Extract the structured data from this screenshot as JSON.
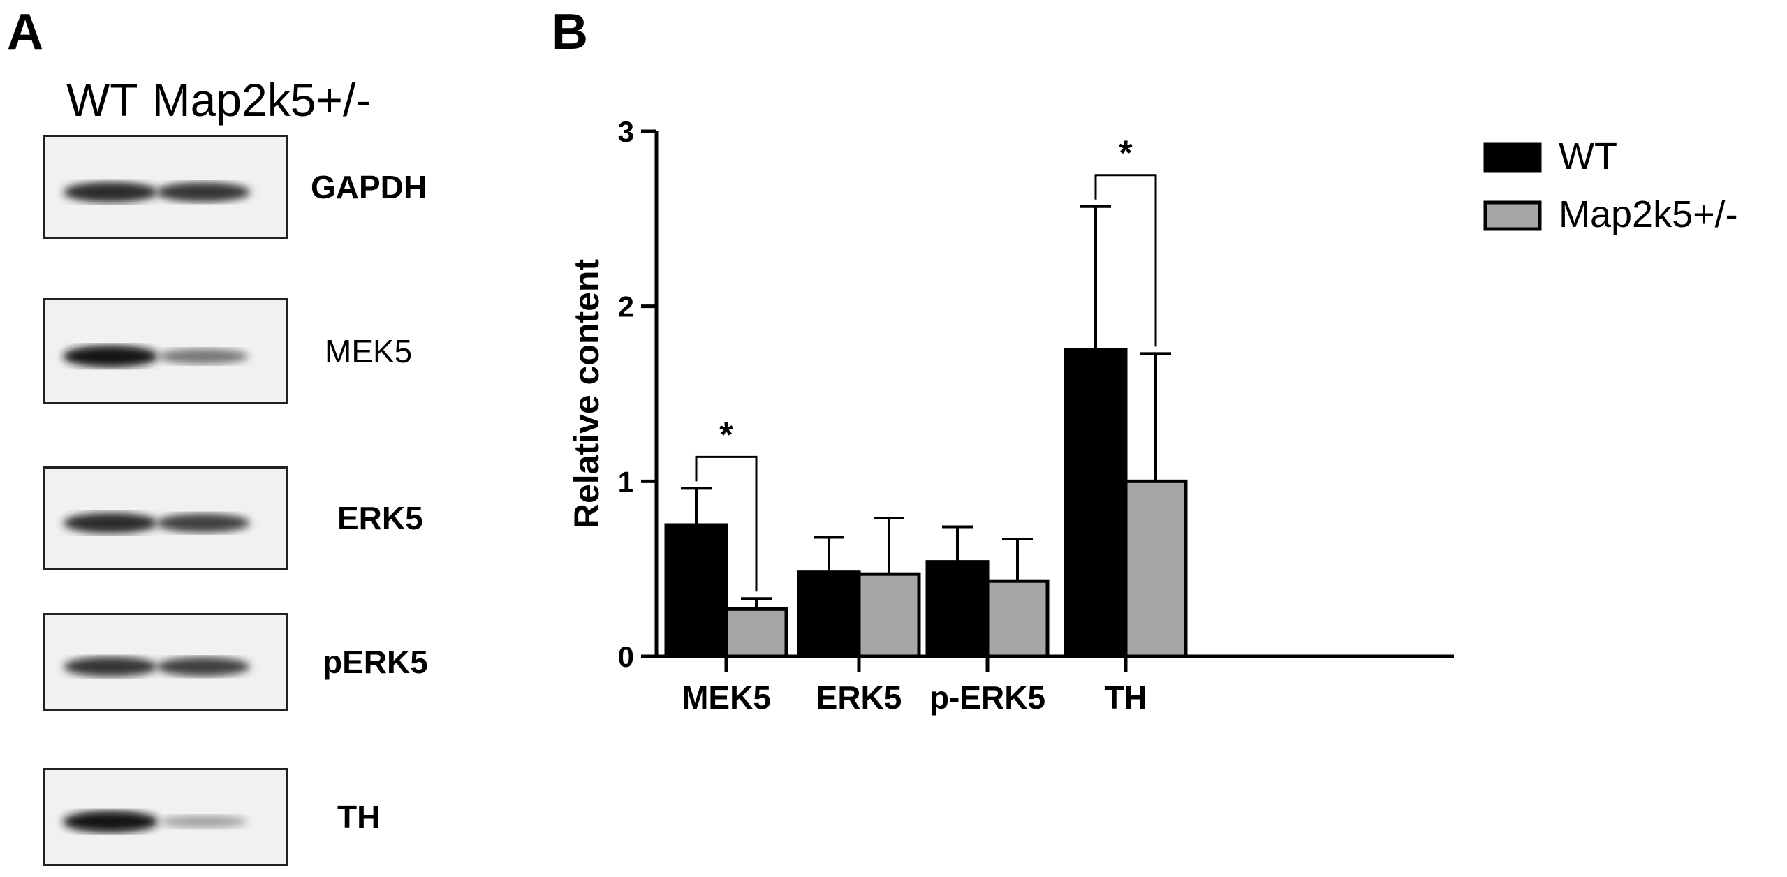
{
  "panels": {
    "a": "A",
    "b": "B"
  },
  "blot": {
    "lanes": [
      "WT",
      "Map2k5+/-"
    ],
    "rows": [
      {
        "label": "GAPDH",
        "intensity": [
          0.85,
          0.8
        ]
      },
      {
        "label": "MEK5",
        "intensity": [
          0.95,
          0.5
        ]
      },
      {
        "label": "ERK5",
        "intensity": [
          0.85,
          0.75
        ]
      },
      {
        "label": "pERK5",
        "intensity": [
          0.8,
          0.75
        ]
      },
      {
        "label": "TH",
        "intensity": [
          0.95,
          0.3
        ]
      }
    ]
  },
  "chart_data": {
    "type": "bar",
    "categories": [
      "MEK5",
      "ERK5",
      "p-ERK5",
      "TH"
    ],
    "series": [
      {
        "name": "WT",
        "values": [
          0.75,
          0.48,
          0.54,
          1.75
        ],
        "errors": [
          0.21,
          0.2,
          0.2,
          0.82
        ],
        "color": "#000000"
      },
      {
        "name": "Map2k5+/-",
        "values": [
          0.27,
          0.47,
          0.43,
          1.0
        ],
        "errors": [
          0.06,
          0.32,
          0.24,
          0.73
        ],
        "color": "#a6a6a6"
      }
    ],
    "ylabel": "Relative content",
    "ylim": [
      0,
      3
    ],
    "yticks": [
      0,
      1,
      2,
      3
    ],
    "significance": [
      {
        "category": "MEK5",
        "marker": "*"
      },
      {
        "category": "TH",
        "marker": "*"
      }
    ],
    "legend_position": "top-right"
  }
}
